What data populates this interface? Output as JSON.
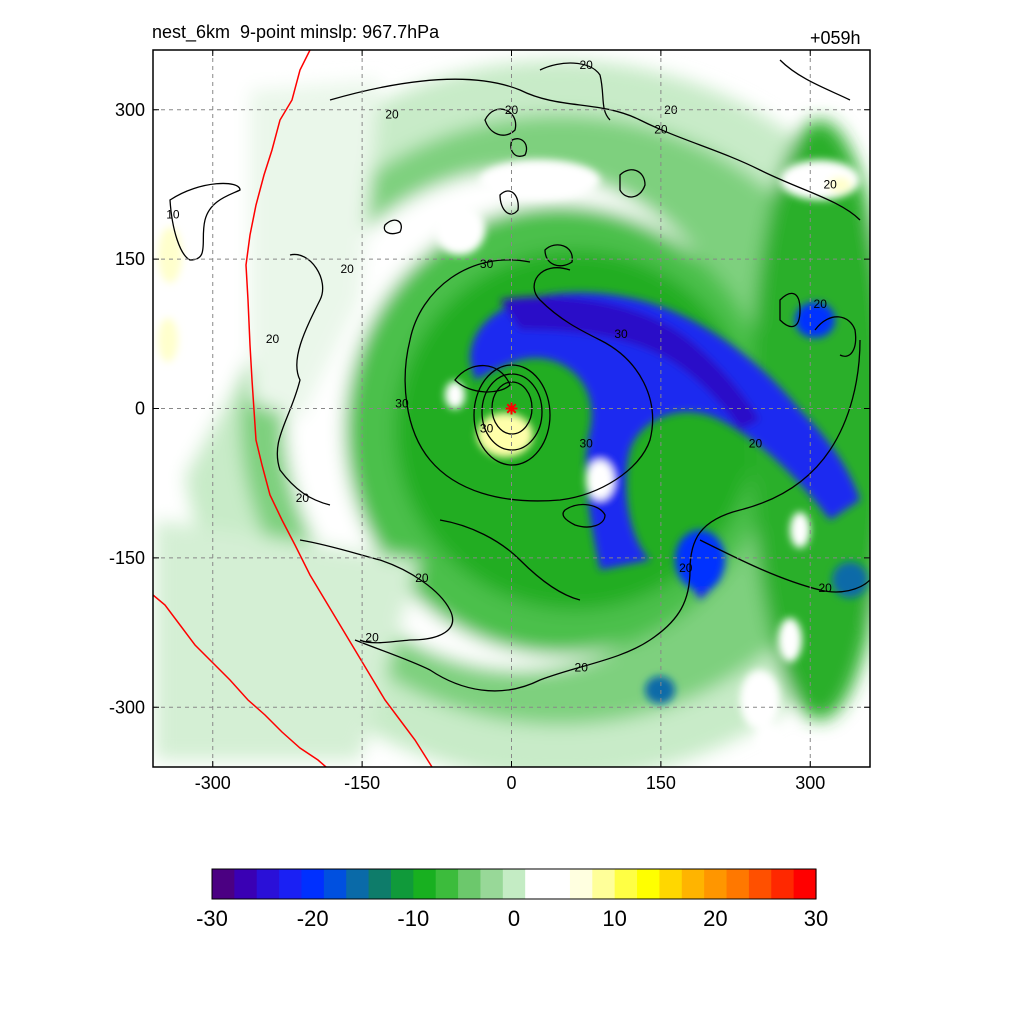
{
  "chart_data": {
    "type": "heatmap",
    "title": "nest_6km  9-point minslp: 967.7hPa",
    "forecast_hour": "+059h",
    "xlim": [
      -360,
      360
    ],
    "ylim": [
      -360,
      360
    ],
    "xticks": [
      -300,
      -150,
      0,
      150,
      300
    ],
    "yticks": [
      -300,
      -150,
      0,
      150,
      300
    ],
    "xtick_labels": [
      "-300",
      "-150",
      "0",
      "150",
      "300"
    ],
    "ytick_labels": [
      "-300",
      "-150",
      "0",
      "150",
      "300"
    ],
    "grid": true,
    "colorbar": {
      "range": [
        -30,
        30
      ],
      "ticks": [
        -30,
        -20,
        -10,
        0,
        10,
        20,
        30
      ],
      "tick_labels": [
        "-30",
        "-20",
        "-10",
        "0",
        "10",
        "20",
        "30"
      ],
      "colors": [
        "#4b0082",
        "#3a00b4",
        "#2a10d8",
        "#1a20f4",
        "#0030ff",
        "#0050e0",
        "#0a6aa8",
        "#0e7c6a",
        "#109a3a",
        "#18b020",
        "#3cbc3c",
        "#6cc86c",
        "#98d898",
        "#c4ecc4",
        "#ffffff",
        "#ffffff",
        "#ffffe0",
        "#ffff99",
        "#ffff44",
        "#ffff00",
        "#ffd700",
        "#ffb400",
        "#ff9600",
        "#ff7800",
        "#ff5000",
        "#ff2800",
        "#ff0000"
      ]
    },
    "storm_center": {
      "x": 0,
      "y": 0
    },
    "contour_labels": [
      {
        "x": -120,
        "y": 295,
        "text": "20"
      },
      {
        "x": 0,
        "y": 300,
        "text": "20"
      },
      {
        "x": 150,
        "y": 280,
        "text": "20"
      },
      {
        "x": 160,
        "y": 300,
        "text": "20"
      },
      {
        "x": 75,
        "y": 345,
        "text": "20"
      },
      {
        "x": -340,
        "y": 195,
        "text": "10"
      },
      {
        "x": -165,
        "y": 140,
        "text": "20"
      },
      {
        "x": -240,
        "y": 70,
        "text": "20"
      },
      {
        "x": -25,
        "y": 145,
        "text": "30"
      },
      {
        "x": 110,
        "y": 75,
        "text": "30"
      },
      {
        "x": -110,
        "y": 5,
        "text": "30"
      },
      {
        "x": -25,
        "y": -20,
        "text": "30"
      },
      {
        "x": 75,
        "y": -35,
        "text": "30"
      },
      {
        "x": 245,
        "y": -35,
        "text": "20"
      },
      {
        "x": 310,
        "y": 105,
        "text": "20"
      },
      {
        "x": 320,
        "y": 225,
        "text": "20"
      },
      {
        "x": -210,
        "y": -90,
        "text": "20"
      },
      {
        "x": 175,
        "y": -160,
        "text": "20"
      },
      {
        "x": 315,
        "y": -180,
        "text": "20"
      },
      {
        "x": -90,
        "y": -170,
        "text": "20"
      },
      {
        "x": -140,
        "y": -230,
        "text": "20"
      },
      {
        "x": 70,
        "y": -260,
        "text": "20"
      }
    ]
  }
}
